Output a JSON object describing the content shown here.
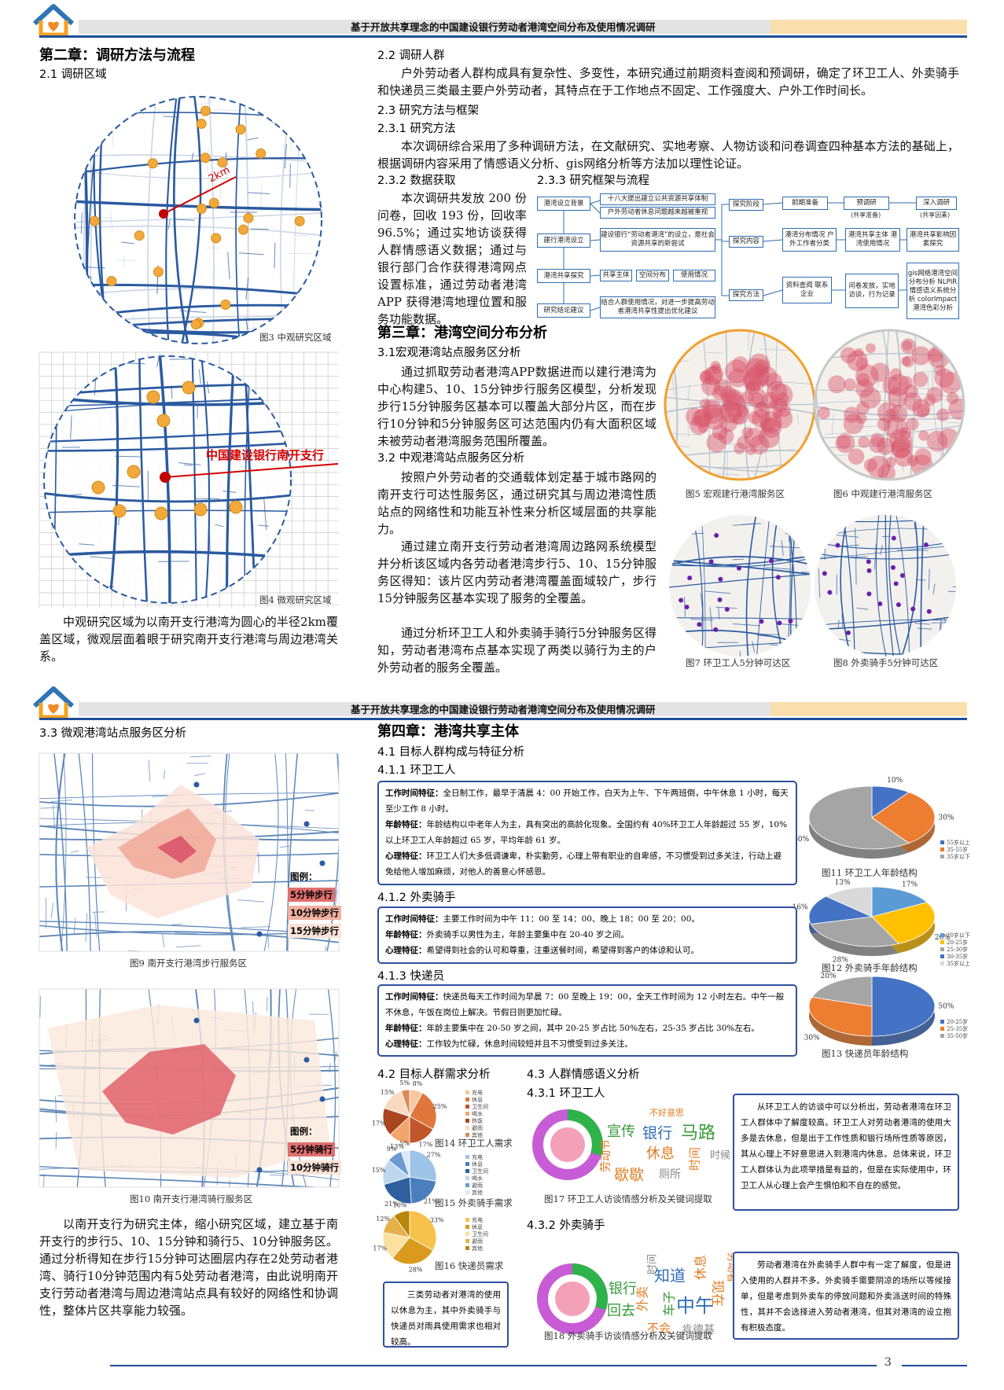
{
  "header": {
    "title": "基于开放共享理念的中国建设银行劳动者港湾空间分布及使用情况调研"
  },
  "page_number": 3,
  "page1": {
    "chapter2_title": "第二章：调研方法与流程",
    "s2_1_title": "2.1 调研区域",
    "fig3_label": "2km",
    "fig3_caption": "图3 中观研究区域",
    "fig4_label": "中国建设银行南开支行",
    "fig4_caption": "图4 微观研究区域",
    "s2_1_text": "中观研究区域为以南开支行港湾为圆心的半径2km覆盖区域，微观层面着眼于研究南开支行港湾与周边港湾关系。",
    "s2_2_title": "2.2 调研人群",
    "s2_2_text": "户外劳动者人群构成具有复杂性、多变性，本研究通过前期资料查阅和预调研，确定了环卫工人、外卖骑手和快递员三类最主要户外劳动者，其特点在于工作地点不固定、工作强度大、户外工作时间长。",
    "s2_3_title": "2.3 研究方法与框架",
    "s2_3_1_title": "2.3.1 研究方法",
    "s2_3_1_text": "本次调研综合采用了多种调研方法，在文献研究、实地考察、人物访谈和问卷调查四种基本方法的基础上，根据调研内容采用了情感语义分析、gis网络分析等方法加以理性论证。",
    "s2_3_2_title": "2.3.2 数据获取",
    "s2_3_2_text": "本次调研共发放 200 份问卷，回收 193 份，回收率96.5%；通过实地访谈获得人群情感语义数据；通过与银行部门合作获得港湾网点设置标准，通过劳动者港湾 APP 获得港湾地理位置和服务功能数据。",
    "s2_3_3_title": "2.3.3 研究框架与流程",
    "flow": {
      "stages": [
        "港湾设立背景",
        "建行港湾设立",
        "港湾共享探究",
        "研究结论建议"
      ],
      "background": [
        "十八大提出建立公共资源共享体制",
        "户外劳动者休息问题越来越被重视"
      ],
      "establish": "建设银行“劳动者港湾”的设立，是社会资源共享的新尝试",
      "topics": [
        "共享主体",
        "空间分布",
        "使用情况"
      ],
      "conclusion": "结合人群使用情况，对进一步提高劳动者港湾共享性提出优化建议",
      "aspects": [
        "探究阶段",
        "探究内容",
        "探究方法"
      ],
      "phases": [
        "前期准备",
        "预调研",
        "深入调研"
      ],
      "phase_notes": [
        "(共享准备)",
        "(共享因素)"
      ],
      "contents": [
        "港湾分布情况 户外工作者分类",
        "港湾共享主体 港湾使用情况",
        "港湾共享影响因素探究"
      ],
      "methods": [
        "资料查阅 联系企业",
        "问卷发放，实地访谈，行为记录",
        "gis网络港湾空间分布分析 NLPIR情感语义系统分析 colorImpact港湾色彩分析"
      ]
    },
    "chapter3_title": "第三章：港湾空间分布分析",
    "s3_1_title": "3.1宏观港湾站点服务区分析",
    "s3_1_text": "通过抓取劳动者港湾APP数据进而以建行港湾为中心构建5、10、15分钟步行服务区模型，分析发现步行15分钟服务区基本可以覆盖大部分片区，而在步行10分钟和5分钟服务区可达范围内仍有大面积区域未被劳动者港湾服务范围所覆盖。",
    "s3_2_title": "3.2 中观港湾站点服务区分析",
    "s3_2_text": [
      "按照户外劳动者的交通载体划定基于城市路网的南开支行可达性服务区，通过研究其与周边港湾性质站点的网络性和功能互补性来分析区域层面的共享能力。",
      "通过建立南开支行劳动者港湾周边路网系统模型并分析该区域内各劳动者港湾步行5、10、15分钟服务区得知：该片区内劳动者港湾覆盖面域较广，步行15分钟服务区基本实现了服务的全覆盖。",
      "通过分析环卫工人和外卖骑手骑行5分钟服务区得知，劳动者港湾布点基本实现了两类以骑行为主的户外劳动者的服务全覆盖。"
    ],
    "fig5_caption": "图5 宏观建行港湾服务区",
    "fig6_caption": "图6 中观建行港湾服务区",
    "fig7_caption": "图7 环卫工人5分钟可达区",
    "fig8_caption": "图8 外卖骑手5分钟可达区"
  },
  "page2": {
    "s3_3_title": "3.3 微观港湾站点服务区分析",
    "fig9_legend": [
      "图例：",
      "5分钟步行",
      "10分钟步行",
      "15分钟步行"
    ],
    "fig9_caption": "图9 南开支行港湾步行服务区",
    "fig10_legend": [
      "图例：",
      "5分钟骑行",
      "10分钟骑行"
    ],
    "fig10_caption": "图10 南开支行港湾骑行服务区",
    "s3_3_text": "以南开支行为研究主体，缩小研究区域，建立基于南开支行的步行5、10、15分钟和骑行5、10分钟服务区。通过分析得知在步行15分钟可达圈层内存在2处劳动者港湾、骑行10分钟范围内有5处劳动者港湾，由此说明南开支行劳动者港湾与周边港湾站点具有较好的网络性和协调性，整体片区共享能力较强。",
    "chapter4_title": "第四章：港湾共享主体",
    "s4_1_title": "4.1 目标人群构成与特征分析",
    "s4_1_1_title": "4.1.1 环卫工人",
    "box1": [
      {
        "label": "工作时间特征：",
        "text": "全日制工作，最早于清晨 4：00 开始工作，白天为上午、下午两班倒，中午休息 1 小时，每天至少工作 8 小时。"
      },
      {
        "label": "年龄特征：",
        "text": "年龄结构以中老年人为主，具有突出的高龄化现象。全国约有 40%环卫工人年龄超过 55 岁，10%以上环卫工人年龄超过 65 岁，平均年龄 61 岁。"
      },
      {
        "label": "心理特征：",
        "text": "环卫工人们大多低调谦卑，朴实勤劳，心理上带有职业的自卑感，不习惯受到过多关注，行动上避免给他人增加麻烦，对他人的善意心怀感恩。"
      }
    ],
    "fig11": {
      "caption": "图11 环卫工人年龄结构",
      "values": [
        10,
        30,
        60
      ],
      "value_labels": [
        "10%",
        "30%",
        "60%"
      ],
      "legend": [
        "55岁以上",
        "35-55岁",
        "35岁以下"
      ]
    },
    "s4_1_2_title": "4.1.2 外卖骑手",
    "box2": [
      {
        "label": "工作时间特征：",
        "text": "主要工作时间为中午 11：00 至 14：00、晚上 18：00 至 20：00。"
      },
      {
        "label": "年龄特征：",
        "text": "外卖骑手以男性为主，年龄主要集中在 20-40 岁之间。"
      },
      {
        "label": "心理特征：",
        "text": "希望得到社会的认可和尊重，注重送餐时间，希望得到客户的体谅和认可。"
      }
    ],
    "fig12": {
      "caption": "图12 外卖骑手年龄结构",
      "values": [
        17,
        26,
        28,
        16,
        13
      ],
      "value_labels": [
        "17%",
        "26%",
        "28%",
        "16%",
        "13%"
      ],
      "legend": [
        "20岁以下",
        "20-25岁",
        "25-30岁",
        "30-35岁",
        "35岁以上"
      ]
    },
    "s4_1_3_title": "4.1.3 快递员",
    "box3": [
      {
        "label": "工作时间特征：",
        "text": "快递员每天工作时间为早晨 7：00 至晚上 19：00，全天工作时间为 12 小时左右。中午一般不休息，午饭在岗位上解决。节假日则更加忙碌。"
      },
      {
        "label": "年龄特征：",
        "text": "年龄主要集中在 20-50 岁之间，其中 20-25 岁占比 50%左右，25-35 岁占比 30%左右。"
      },
      {
        "label": "心理特征：",
        "text": "工作较为忙碌，休息时间较短并且不习惯受到过多关注。"
      }
    ],
    "fig13": {
      "caption": "图13 快递员年龄结构",
      "values": [
        50,
        30,
        20
      ],
      "value_labels": [
        "50%",
        "30%",
        "20%"
      ],
      "legend": [
        "20-25岁",
        "25-35岁",
        "35-50岁"
      ]
    },
    "s4_2_title": "4.2 目标人群需求分析",
    "fig14": {
      "caption": "图14 环卫工人需求",
      "values": [
        8,
        25,
        17,
        13,
        17,
        15,
        5
      ],
      "value_labels": [
        "8%",
        "25%",
        "17%",
        "13%",
        "17%",
        "15%",
        "5%"
      ],
      "legend": [
        "充电",
        "休息",
        "卫生间",
        "喝水",
        "热饭",
        "避雨",
        "其他"
      ]
    },
    "fig15": {
      "caption": "图15 外卖骑手需求",
      "values": [
        27,
        21,
        21,
        15,
        9,
        5
      ],
      "value_labels": [
        "27%",
        "21%",
        "21%",
        "15%",
        "9%",
        "5%"
      ],
      "legend": [
        "充电",
        "休息",
        "卫生间",
        "喝水",
        "避雨",
        "其他"
      ]
    },
    "fig16": {
      "caption": "图16 快递员需求",
      "values": [
        33,
        28,
        17,
        12,
        10
      ],
      "value_labels": [
        "33%",
        "28%",
        "17%",
        "12%",
        "10%"
      ],
      "legend": [
        "充电",
        "休息",
        "卫生间",
        "避雨",
        "其他"
      ]
    },
    "need_note": "三类劳动者对港湾的使用以休息为主，其中外卖骑手与快递员对雨具使用需求也相对较高。",
    "s4_3_title": "4.3 人群情感语义分析",
    "s4_3_1_title": "4.3.1 环卫工人",
    "fig17": {
      "caption": "图17 环卫工人访谈情感分析及关键词提取",
      "words": [
        "不好意思",
        "宣传",
        "银行",
        "马路",
        "劳动节",
        "休息",
        "时间",
        "时候",
        "歇歇",
        "厕所"
      ]
    },
    "fig17_text": "从环卫工人的访谈中可以分析出，劳动者港湾在环卫工人群体中了解度较高。环卫工人对劳动者港湾的使用大多是去休息，但是出于工作性质和银行场所性质等原因，其从心理上不好意思进入到港湾内休息。总体来说，环卫工人群体认为此项举措是有益的，但是在实际使用中，环卫工人从心理上会产生惧怕和不自在的感觉。",
    "s4_3_2_title": "4.3.2 外卖骑手",
    "fig18": {
      "caption": "图18 外卖骑手访谈情感分析及关键词提取",
      "words": [
        "银行",
        "回去",
        "知道",
        "不会",
        "外卖",
        "中午",
        "车子",
        "肯德基",
        "休息",
        "时间",
        "现在",
        "劳动者"
      ]
    },
    "fig18_text": "劳动者港湾在外卖骑手人群中有一定了解度，但是进入使用的人群并不多。外卖骑手需要阴凉的场所以等候接单，但是考虑到外卖车的停放问题和外卖派送时间的特殊性，其并不会选择进入劳动者港湾，但其对港湾的设立抱有积极态度。"
  }
}
